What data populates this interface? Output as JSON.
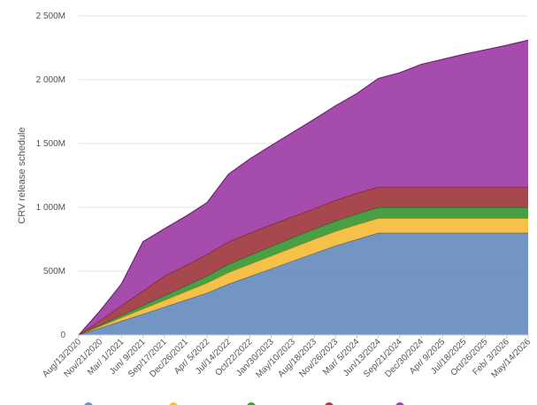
{
  "chart_data": {
    "type": "area",
    "stacked": true,
    "ylabel": "CRV release schedule",
    "xlabel": "",
    "ylim": [
      0,
      2500
    ],
    "y_unit": "M",
    "y_ticks": [
      {
        "value": 0,
        "label": "0"
      },
      {
        "value": 500,
        "label": "500M"
      },
      {
        "value": 1000,
        "label": "1 000M"
      },
      {
        "value": 1500,
        "label": "1 500M"
      },
      {
        "value": 2000,
        "label": "2 000M"
      },
      {
        "value": 2500,
        "label": "2 500M"
      }
    ],
    "grid": true,
    "legend_position": "bottom",
    "categories": [
      "Aug/13/2020",
      "Nov/21/2020",
      "Mar/ 1/2021",
      "Jun/ 9/2021",
      "Sep/17/2021",
      "Dec/26/2021",
      "Apr/ 5/2022",
      "Jul/14/2022",
      "Oct/22/2022",
      "Jan/30/2023",
      "May/10/2023",
      "Aug/18/2023",
      "Nov/26/2023",
      "Mar/ 5/2024",
      "Jun/13/2024",
      "Sep/21/2024",
      "Dec/30/2024",
      "Apr/ 9/2025",
      "Jul/18/2025",
      "Oct/26/2025",
      "Feb/ 3/2026",
      "May/14/2026"
    ],
    "x_ticks": [
      "Aug/13/2020",
      "Nov/21/2020",
      "Mar/ 1/2021",
      "Jun/ 9/2021",
      "Sep/17/2021",
      "Dec/26/2021",
      "Apr/ 5/2022",
      "Jul/14/2022",
      "Oct/22/2022",
      "Jan/30/2023",
      "May/10/2023",
      "Aug/18/2023",
      "Nov/26/2023",
      "Mar/ 5/2024",
      "Jun/13/2024",
      "Sep/21/2024",
      "Dec/30/2024",
      "Apr/ 9/2025",
      "Jul/18/2025",
      "Oct/26/2025",
      "Feb/ 3/2026",
      "May/14/2026"
    ],
    "x_range": [
      "Aug/13/2020",
      "Aug/13/2026"
    ],
    "series": [
      {
        "color": "#6a8fc0",
        "line": "#3d5f8f",
        "values": [
          0,
          55,
          110,
          165,
          220,
          275,
          330,
          400,
          460,
          520,
          580,
          640,
          700,
          750,
          800,
          800,
          800,
          800,
          800,
          800,
          800,
          800
        ]
      },
      {
        "color": "#f5bd3f",
        "line": "#c99417",
        "values": [
          0,
          13,
          26,
          39,
          52,
          65,
          78,
          90,
          95,
          100,
          105,
          110,
          112,
          115,
          115,
          115,
          115,
          115,
          115,
          115,
          115,
          115
        ]
      },
      {
        "color": "#3f9a3a",
        "line": "#2d7028",
        "values": [
          0,
          9,
          18,
          27,
          36,
          45,
          55,
          65,
          70,
          75,
          78,
          80,
          82,
          84,
          85,
          85,
          85,
          85,
          85,
          85,
          85,
          85
        ]
      },
      {
        "color": "#a13e43",
        "line": "#7a262b",
        "values": [
          0,
          38,
          77,
          115,
          154,
          160,
          170,
          176,
          175,
          170,
          165,
          160,
          162,
          163,
          160,
          160,
          160,
          160,
          160,
          160,
          160,
          160
        ]
      },
      {
        "color": "#a042a8",
        "line": "#6e2475",
        "values": [
          0,
          75,
          170,
          385,
          370,
          385,
          405,
          529,
          580,
          620,
          660,
          700,
          740,
          780,
          850,
          895,
          960,
          1000,
          1040,
          1075,
          1110,
          1150
        ]
      }
    ]
  }
}
